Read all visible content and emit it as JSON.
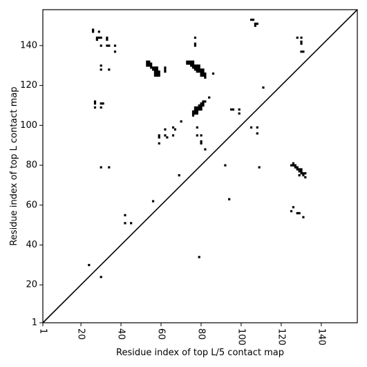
{
  "chart_data": {
    "type": "heatmap",
    "title": "",
    "xlabel": "Residue index of top L/5 contact map",
    "ylabel": "Residue index of top L contact map",
    "xlim": [
      1,
      158
    ],
    "ylim": [
      1,
      158
    ],
    "x_ticks": [
      1,
      20,
      40,
      60,
      80,
      100,
      120,
      140
    ],
    "y_ticks": [
      1,
      20,
      40,
      60,
      80,
      100,
      120,
      140
    ],
    "x_tick_rotation": -90,
    "diagonal_line": true,
    "grid": false,
    "cell_size": 1,
    "color": "#000000",
    "contacts_upper_left": [
      [
        26,
        148
      ],
      [
        26,
        147
      ],
      [
        29,
        147
      ],
      [
        28,
        144
      ],
      [
        29,
        144
      ],
      [
        30,
        144
      ],
      [
        28,
        143
      ],
      [
        30,
        140
      ],
      [
        33,
        144
      ],
      [
        33,
        143
      ],
      [
        33,
        140
      ],
      [
        34,
        140
      ],
      [
        37,
        140
      ],
      [
        37,
        137
      ],
      [
        30,
        130
      ],
      [
        30,
        128
      ],
      [
        34,
        128
      ],
      [
        27,
        112
      ],
      [
        27,
        111
      ],
      [
        30,
        111
      ],
      [
        31,
        111
      ],
      [
        27,
        109
      ],
      [
        30,
        109
      ],
      [
        53,
        132
      ],
      [
        54,
        132
      ],
      [
        53,
        131
      ],
      [
        54,
        131
      ],
      [
        55,
        131
      ],
      [
        53,
        130
      ],
      [
        54,
        130
      ],
      [
        55,
        130
      ],
      [
        55,
        129
      ],
      [
        56,
        129
      ],
      [
        57,
        129
      ],
      [
        58,
        129
      ],
      [
        56,
        128
      ],
      [
        57,
        128
      ],
      [
        58,
        128
      ],
      [
        57,
        127
      ],
      [
        58,
        127
      ],
      [
        59,
        127
      ],
      [
        57,
        126
      ],
      [
        58,
        126
      ],
      [
        59,
        126
      ],
      [
        57,
        125
      ],
      [
        58,
        125
      ],
      [
        59,
        125
      ],
      [
        62,
        129
      ],
      [
        62,
        128
      ],
      [
        62,
        127
      ],
      [
        73,
        132
      ],
      [
        74,
        132
      ],
      [
        75,
        132
      ],
      [
        76,
        132
      ],
      [
        73,
        131
      ],
      [
        74,
        131
      ],
      [
        75,
        131
      ],
      [
        76,
        131
      ],
      [
        75,
        130
      ],
      [
        76,
        130
      ],
      [
        77,
        130
      ],
      [
        78,
        130
      ],
      [
        79,
        130
      ],
      [
        76,
        129
      ],
      [
        77,
        129
      ],
      [
        78,
        129
      ],
      [
        79,
        129
      ],
      [
        77,
        128
      ],
      [
        78,
        128
      ],
      [
        79,
        128
      ],
      [
        80,
        128
      ],
      [
        81,
        128
      ],
      [
        78,
        127
      ],
      [
        79,
        127
      ],
      [
        80,
        127
      ],
      [
        81,
        127
      ],
      [
        80,
        126
      ],
      [
        81,
        126
      ],
      [
        82,
        126
      ],
      [
        80,
        125
      ],
      [
        81,
        125
      ],
      [
        82,
        125
      ],
      [
        82,
        124
      ],
      [
        86,
        126
      ],
      [
        77,
        144
      ],
      [
        77,
        141
      ],
      [
        77,
        140
      ],
      [
        105,
        153
      ],
      [
        106,
        153
      ],
      [
        107,
        151
      ],
      [
        108,
        151
      ],
      [
        107,
        150
      ],
      [
        111,
        119
      ],
      [
        84,
        114
      ],
      [
        80,
        111
      ],
      [
        81,
        111
      ],
      [
        79,
        110
      ],
      [
        80,
        110
      ],
      [
        81,
        110
      ],
      [
        77,
        109
      ],
      [
        78,
        109
      ],
      [
        79,
        109
      ],
      [
        80,
        109
      ],
      [
        77,
        108
      ],
      [
        78,
        108
      ],
      [
        79,
        108
      ],
      [
        80,
        108
      ],
      [
        76,
        107
      ],
      [
        77,
        107
      ],
      [
        78,
        107
      ],
      [
        76,
        106
      ],
      [
        77,
        106
      ],
      [
        78,
        106
      ],
      [
        76,
        105
      ],
      [
        81,
        112
      ],
      [
        82,
        112
      ],
      [
        81,
        111
      ],
      [
        70,
        102
      ],
      [
        66,
        99
      ],
      [
        67,
        98
      ],
      [
        62,
        98
      ],
      [
        78,
        99
      ],
      [
        59,
        95
      ],
      [
        62,
        95
      ],
      [
        63,
        94
      ],
      [
        66,
        95
      ],
      [
        59,
        94
      ],
      [
        59,
        91
      ],
      [
        78,
        95
      ],
      [
        80,
        95
      ],
      [
        80,
        92
      ],
      [
        80,
        91
      ],
      [
        82,
        88
      ],
      [
        69,
        75
      ],
      [
        95,
        108
      ],
      [
        96,
        108
      ],
      [
        99,
        108
      ],
      [
        99,
        106
      ],
      [
        105,
        99
      ],
      [
        108,
        99
      ],
      [
        108,
        96
      ],
      [
        92,
        80
      ],
      [
        30,
        79
      ],
      [
        34,
        79
      ],
      [
        109,
        79
      ],
      [
        94,
        63
      ],
      [
        56,
        62
      ],
      [
        42,
        55
      ],
      [
        42,
        51
      ],
      [
        45,
        51
      ],
      [
        24,
        30
      ],
      [
        30,
        24
      ],
      [
        79,
        34
      ]
    ],
    "contacts_lower_right": [
      [
        128,
        144
      ],
      [
        130,
        144
      ],
      [
        130,
        142
      ],
      [
        130,
        141
      ],
      [
        130,
        137
      ],
      [
        131,
        137
      ],
      [
        125,
        80
      ],
      [
        126,
        81
      ],
      [
        126,
        80
      ],
      [
        127,
        80
      ],
      [
        127,
        79
      ],
      [
        128,
        79
      ],
      [
        128,
        78
      ],
      [
        129,
        78
      ],
      [
        130,
        78
      ],
      [
        129,
        77
      ],
      [
        130,
        77
      ],
      [
        130,
        76
      ],
      [
        131,
        76
      ],
      [
        132,
        76
      ],
      [
        129,
        75
      ],
      [
        131,
        75
      ],
      [
        132,
        74
      ],
      [
        125,
        57
      ],
      [
        126,
        59
      ],
      [
        128,
        56
      ],
      [
        129,
        56
      ],
      [
        131,
        54
      ]
    ]
  }
}
